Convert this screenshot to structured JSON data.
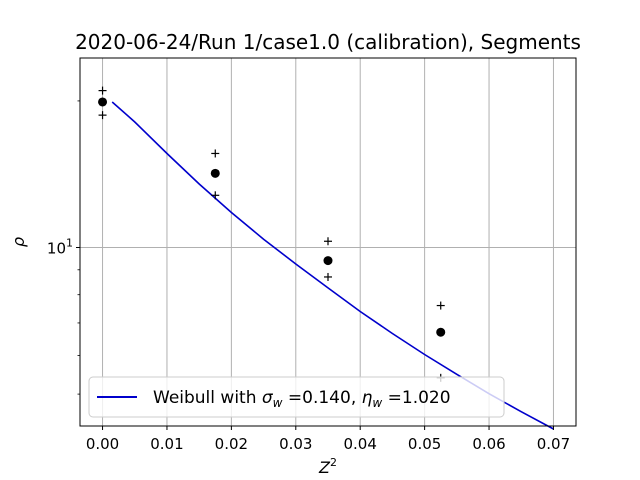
{
  "chart_data": {
    "type": "line",
    "title": "2020-06-24/Run 1/case1.0 (calibration), Segments",
    "xlabel": "Z",
    "xlabel_sup": "2",
    "ylabel": "ρ",
    "xlim": [
      -0.0035,
      0.0735
    ],
    "ylim": [
      4.3,
      24.5
    ],
    "yscale": "log",
    "grid": true,
    "x_ticks": [
      0.0,
      0.01,
      0.02,
      0.03,
      0.04,
      0.05,
      0.06,
      0.07
    ],
    "x_tick_labels": [
      "0.00",
      "0.01",
      "0.02",
      "0.03",
      "0.04",
      "0.05",
      "0.06",
      "0.07"
    ],
    "y_ticks": [
      10
    ],
    "y_tick_label_base": "10",
    "y_tick_label_exp": "1",
    "series": [
      {
        "name": "Weibull with σw =0.140, ηw =1.020",
        "kind": "line",
        "color": "#0000cc",
        "x": [
          0.0015,
          0.005,
          0.01,
          0.015,
          0.02,
          0.025,
          0.03,
          0.035,
          0.04,
          0.045,
          0.05,
          0.055,
          0.06,
          0.065,
          0.07
        ],
        "y": [
          19.9,
          18.1,
          15.6,
          13.5,
          11.8,
          10.4,
          9.25,
          8.26,
          7.39,
          6.66,
          6.03,
          5.49,
          5.01,
          4.6,
          4.24
        ]
      },
      {
        "name": "",
        "kind": "points",
        "marker": "circle",
        "color": "#000000",
        "x": [
          0.0,
          0.0175,
          0.035,
          0.0525
        ],
        "y": [
          19.9,
          14.2,
          9.4,
          6.7
        ]
      },
      {
        "name": "",
        "kind": "points",
        "marker": "plus",
        "color": "#000000",
        "x": [
          0.0,
          0.0175,
          0.035,
          0.0525
        ],
        "y": [
          21.0,
          15.6,
          10.3,
          7.6
        ]
      },
      {
        "name": "",
        "kind": "points",
        "marker": "plus",
        "color": "#000000",
        "x": [
          0.0,
          0.0175,
          0.035,
          0.0525
        ],
        "y": [
          18.7,
          12.8,
          8.7,
          5.4
        ]
      }
    ],
    "legend": {
      "position": "lower-left",
      "text_prefix": "Weibull with ",
      "sigma": "σ",
      "sigma_sub": "w",
      "sigma_value": " =0.140, ",
      "eta": "η",
      "eta_sub": "w",
      "eta_value": " =1.020"
    }
  }
}
